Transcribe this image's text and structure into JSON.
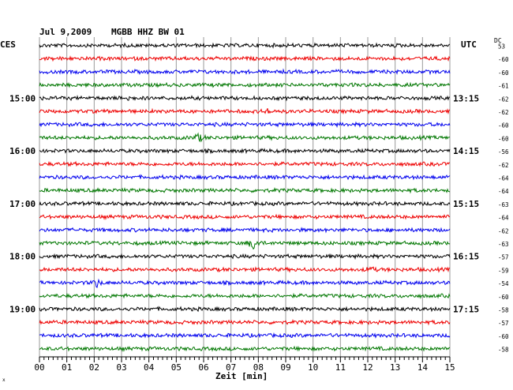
{
  "header": {
    "date": "Jul 9,2009",
    "station": "MGBB HHZ BW 01",
    "left_zone": "CES",
    "right_zone": "UTC",
    "dc_label": "DC",
    "corner_mark": "x"
  },
  "chart_data": {
    "type": "line",
    "title": "Jul 9,2009   MGBB HHZ BW 01",
    "xlabel": "Zeit [min]",
    "x_range": [
      0,
      15
    ],
    "x_ticks": [
      "00",
      "01",
      "02",
      "03",
      "04",
      "05",
      "06",
      "07",
      "08",
      "09",
      "10",
      "11",
      "12",
      "13",
      "14",
      "15"
    ],
    "left_time_labels": [
      {
        "row": 4,
        "label": "15:00"
      },
      {
        "row": 8,
        "label": "16:00"
      },
      {
        "row": 12,
        "label": "17:00"
      },
      {
        "row": 16,
        "label": "18:00"
      },
      {
        "row": 20,
        "label": "19:00"
      }
    ],
    "right_time_labels": [
      {
        "row": 4,
        "label": "13:15"
      },
      {
        "row": 8,
        "label": "14:15"
      },
      {
        "row": 12,
        "label": "15:15"
      },
      {
        "row": 16,
        "label": "16:15"
      },
      {
        "row": 20,
        "label": "17:15"
      }
    ],
    "dc_values": [
      "53",
      "-60",
      "-60",
      "-61",
      "-62",
      "-62",
      "-60",
      "-60",
      "-56",
      "-62",
      "-64",
      "-64",
      "-63",
      "-64",
      "-62",
      "-63",
      "-57",
      "-59",
      "-54",
      "-60",
      "-58",
      "-57",
      "-60",
      "-58"
    ],
    "trace_colors": [
      "#000000",
      "#ee0000",
      "#0000ee",
      "#007700"
    ],
    "n_traces": 24,
    "events": [
      {
        "row": 7,
        "minute": 5.8,
        "amplitude": 5
      },
      {
        "row": 15,
        "minute": 7.85,
        "amplitude": 9
      },
      {
        "row": 18,
        "minute": 2.1,
        "amplitude": 5
      },
      {
        "row": 17,
        "minute": 12.1,
        "amplitude": 3
      },
      {
        "row": 5,
        "minute": 8.3,
        "amplitude": 3
      },
      {
        "row": 4,
        "minute": 3.2,
        "amplitude": 3
      }
    ],
    "grid": true
  }
}
